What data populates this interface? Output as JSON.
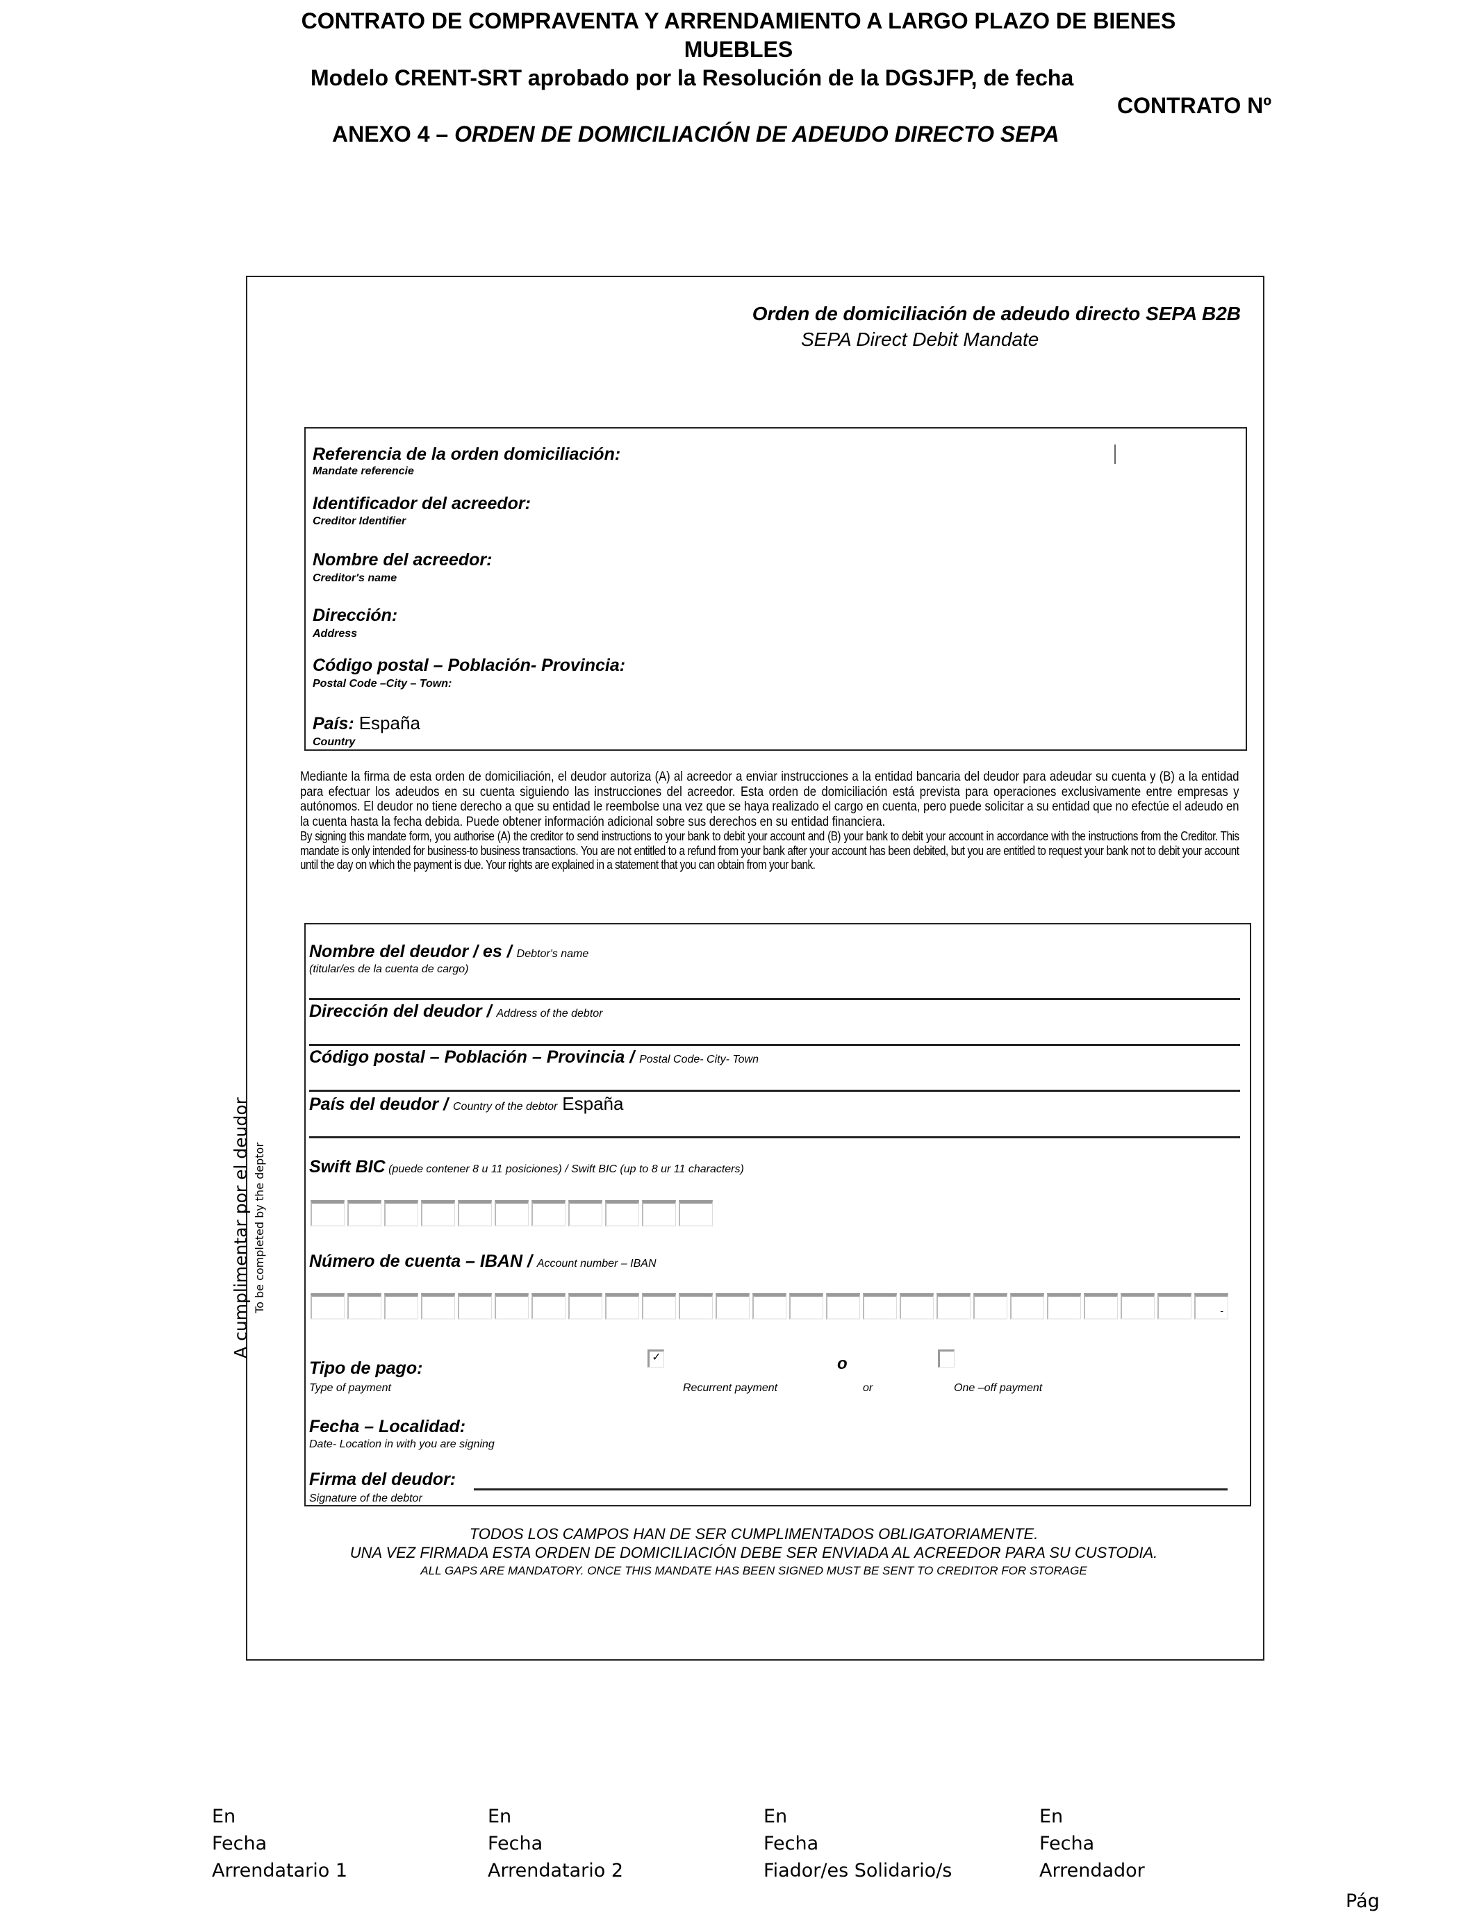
{
  "header": {
    "title_line1": "CONTRATO DE COMPRAVENTA Y ARRENDAMIENTO A LARGO PLAZO DE BIENES",
    "title_line2": "MUEBLES",
    "subtitle": "Modelo CRENT-SRT aprobado por la Resolución de la DGSJFP, de fecha",
    "contract_no": "CONTRATO Nº",
    "annex_prefix": "ANEXO 4 – ",
    "annex_title": "ORDEN DE DOMICILIACIÓN DE ADEUDO DIRECTO SEPA"
  },
  "form": {
    "title": "Orden de domiciliación de adeudo directo SEPA B2B",
    "subtitle": "SEPA Direct Debit Mandate",
    "creditor": [
      {
        "label": "Referencia de la orden domiciliación:",
        "sub": "Mandate referencie"
      },
      {
        "label": "Identificador del acreedor:",
        "sub": "Creditor Identifier"
      },
      {
        "label": "Nombre del acreedor:",
        "sub": "Creditor's name"
      },
      {
        "label": "Dirección:",
        "sub": "Address"
      },
      {
        "label": "Código postal – Población- Provincia:",
        "sub": "Postal Code –City – Town:"
      },
      {
        "label": "País:",
        "value": "España",
        "sub": "Country"
      }
    ],
    "paragraph_es": "Mediante la firma de esta orden de domiciliación, el deudor autoriza (A) al acreedor a enviar instrucciones a la entidad bancaria del deudor para adeudar su cuenta y (B) a la entidad para efectuar los adeudos en su cuenta siguiendo las instrucciones del acreedor. Esta orden de domiciliación está prevista para operaciones exclusivamente entre empresas y autónomos. El deudor no tiene derecho a que su entidad le reembolse una vez que se haya realizado el cargo en cuenta, pero puede solicitar a su entidad que no efectúe el adeudo en la cuenta hasta la fecha debida. Puede obtener información adicional sobre sus derechos en su entidad financiera.",
    "paragraph_en": "By signing this mandate form, you authorise (A) the creditor to send instructions to your bank to debit your account and (B) your bank to debit your account in accordance with the instructions from the Creditor. This mandate is only intended for business-to business transactions. You are not entitled to a refund from your bank after your account has been debited, but you are entitled to request your bank not to debit your account until the day on which the payment is due. Your rights are explained in a statement that you can obtain from your bank.",
    "side_label": "A cumplimentar por el deudor",
    "side_label_en": "To be completed by the deptor",
    "debtor": {
      "name_label": "Nombre del deudor / es / ",
      "name_en": "Debtor's name",
      "name_sub": "(titular/es de la cuenta de cargo)",
      "address_label": "Dirección del deudor / ",
      "address_en": "Address of the debtor",
      "postal_label": "Código postal – Población – Provincia / ",
      "postal_en": "Postal Code- City- Town",
      "country_label": "País del deudor / ",
      "country_en": "Country of the debtor",
      "country_value": "España",
      "bic_label": "Swift BIC",
      "bic_note": " (puede contener 8 u 11 posiciones) / Swift BIC (up to 8 ur 11 characters)",
      "iban_label": "Número de cuenta – IBAN / ",
      "iban_en": "Account number – IBAN",
      "iban_last_mark": "-",
      "payment_label": "Tipo de pago:",
      "payment_sub": "Type of payment",
      "recurrent_label": "Recurrent payment",
      "recurrent_checked": true,
      "or_es": "o",
      "or_en": "or",
      "oneoff_label": "One –off payment",
      "oneoff_checked": false,
      "date_label": "Fecha – Localidad:",
      "date_sub": "Date- Location in with you are signing",
      "signature_label": "Firma del deudor:",
      "signature_sub": "Signature of the debtor"
    },
    "footer_line1": "TODOS LOS CAMPOS HAN DE SER CUMPLIMENTADOS OBLIGATORIAMENTE.",
    "footer_line2": "UNA VEZ FIRMADA ESTA ORDEN DE DOMICILIACIÓN DEBE SER ENVIADA AL ACREEDOR PARA SU CUSTODIA.",
    "footer_line3": "ALL GAPS ARE MANDATORY. ONCE THIS MANDATE HAS BEEN SIGNED MUST BE SENT TO CREDITOR FOR STORAGE"
  },
  "signatures": [
    {
      "en": "En",
      "fecha": "Fecha",
      "role": "Arrendatario 1"
    },
    {
      "en": "En",
      "fecha": "Fecha",
      "role": "Arrendatario 2"
    },
    {
      "en": "En",
      "fecha": "Fecha",
      "role": "Fiador/es Solidario/s"
    },
    {
      "en": "En",
      "fecha": "Fecha",
      "role": "Arrendador"
    }
  ],
  "page_label": "Pág"
}
